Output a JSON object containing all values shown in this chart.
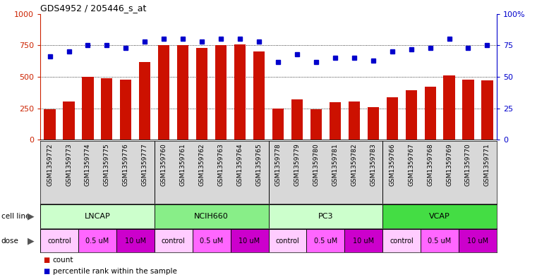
{
  "title": "GDS4952 / 205446_s_at",
  "samples": [
    "GSM1359772",
    "GSM1359773",
    "GSM1359774",
    "GSM1359775",
    "GSM1359776",
    "GSM1359777",
    "GSM1359760",
    "GSM1359761",
    "GSM1359762",
    "GSM1359763",
    "GSM1359764",
    "GSM1359765",
    "GSM1359778",
    "GSM1359779",
    "GSM1359780",
    "GSM1359781",
    "GSM1359782",
    "GSM1359783",
    "GSM1359766",
    "GSM1359767",
    "GSM1359768",
    "GSM1359769",
    "GSM1359770",
    "GSM1359771"
  ],
  "counts": [
    245,
    305,
    500,
    490,
    480,
    620,
    750,
    750,
    730,
    750,
    760,
    700,
    250,
    320,
    245,
    300,
    305,
    260,
    340,
    395,
    420,
    510,
    480,
    470
  ],
  "percentile": [
    66,
    70,
    75,
    75,
    73,
    78,
    80,
    80,
    78,
    80,
    80,
    78,
    62,
    68,
    62,
    65,
    65,
    63,
    70,
    72,
    73,
    80,
    73,
    75
  ],
  "cell_lines": [
    "LNCAP",
    "NCIH660",
    "PC3",
    "VCAP"
  ],
  "cell_line_spans": [
    [
      0,
      5
    ],
    [
      6,
      11
    ],
    [
      12,
      17
    ],
    [
      18,
      23
    ]
  ],
  "cell_line_colors": [
    "#ccffcc",
    "#88ee88",
    "#ccffcc",
    "#44dd44"
  ],
  "bar_color": "#cc1100",
  "dot_color": "#0000cc",
  "ylim_left": [
    0,
    1000
  ],
  "ylim_right": [
    0,
    100
  ],
  "yticks_left": [
    0,
    250,
    500,
    750,
    1000
  ],
  "yticks_right": [
    0,
    25,
    50,
    75,
    100
  ],
  "grid_values": [
    250,
    500,
    750
  ],
  "axis_color_left": "#cc2200",
  "axis_color_right": "#0000cc",
  "legend_count_label": "count",
  "legend_pct_label": "percentile rank within the sample",
  "dose_group_labels": [
    "control",
    "0.5 uM",
    "10 uM",
    "control",
    "0.5 uM",
    "10 uM",
    "control",
    "0.5 uM",
    "10 uM",
    "control",
    "0.5 uM",
    "10 uM"
  ],
  "dose_colors": {
    "control": "#ffccff",
    "0.5 uM": "#ff66ff",
    "10 uM": "#cc00cc"
  }
}
